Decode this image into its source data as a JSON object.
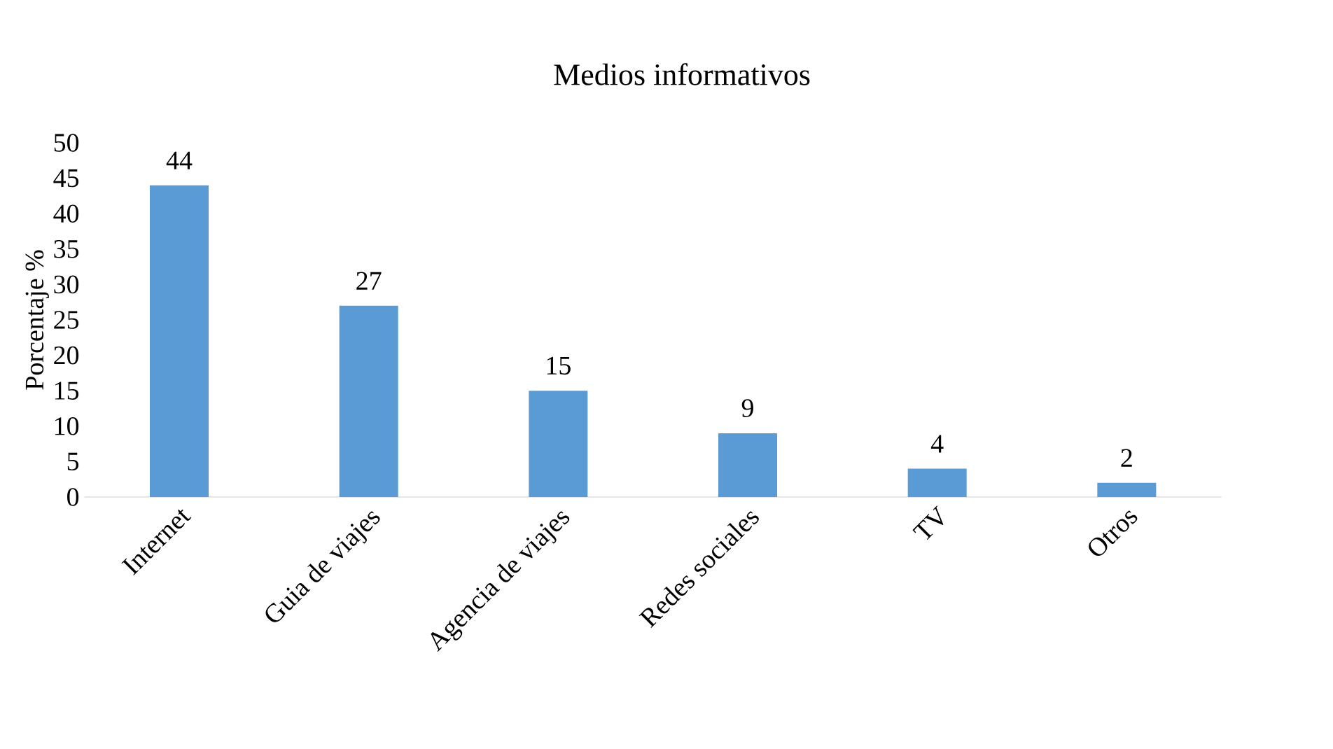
{
  "chart_data": {
    "type": "bar",
    "title": "Medios informativos",
    "ylabel": "Porcentaje %",
    "categories": [
      "Internet",
      "Guia de viajes",
      "Agencia de viajes",
      "Redes sociales",
      "TV",
      "Otros"
    ],
    "values": [
      44,
      27,
      15,
      9,
      4,
      2
    ],
    "color": "#5b9bd5",
    "ylim": [
      0,
      50
    ],
    "yticks": [
      0,
      5,
      10,
      15,
      20,
      25,
      30,
      35,
      40,
      45,
      50
    ],
    "grid": false,
    "data_labels": true
  }
}
